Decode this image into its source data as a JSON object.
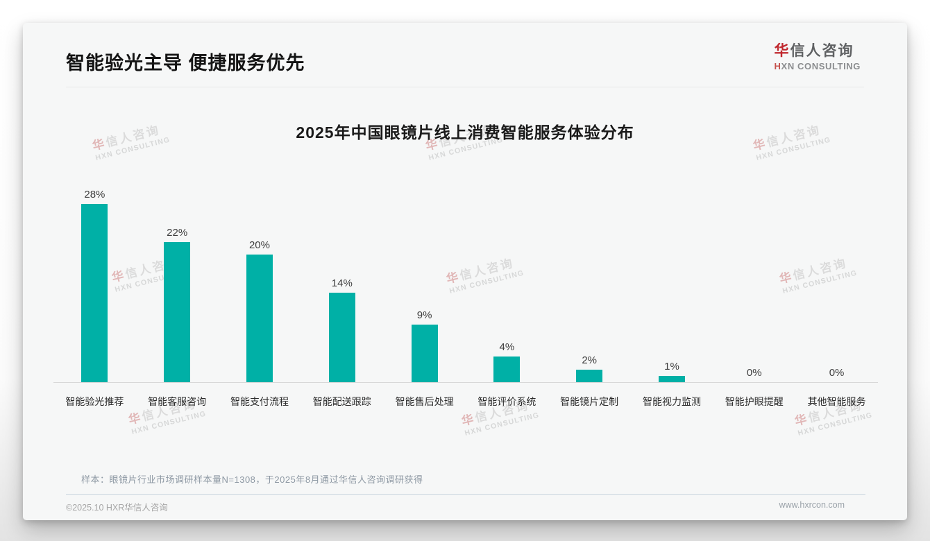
{
  "header": {
    "title": "智能验光主导 便捷服务优先"
  },
  "logo": {
    "zh_accent": "华",
    "zh_rest": "信人咨询",
    "en_accent": "H",
    "en_rest": "XN CONSULTING"
  },
  "watermark": {
    "zh_accent": "华",
    "zh_rest": "信人咨询",
    "en": "HXN CONSULTING"
  },
  "chart_data": {
    "type": "bar",
    "title": "2025年中国眼镜片线上消费智能服务体验分布",
    "categories": [
      "智能验光推荐",
      "智能客服咨询",
      "智能支付流程",
      "智能配送跟踪",
      "智能售后处理",
      "智能评价系统",
      "智能镜片定制",
      "智能视力监测",
      "智能护眼提醒",
      "其他智能服务"
    ],
    "values": [
      28,
      22,
      20,
      14,
      9,
      4,
      2,
      1,
      0,
      0
    ],
    "unit": "%",
    "value_labels": [
      "28%",
      "22%",
      "20%",
      "14%",
      "9%",
      "4%",
      "2%",
      "1%",
      "0%",
      "0%"
    ],
    "bar_color": "#00b0a6",
    "ylim": [
      0,
      30
    ],
    "grid": false,
    "legend": null,
    "xlabel": "",
    "ylabel": ""
  },
  "note": "样本：眼镜片行业市场调研样本量N=1308，于2025年8月通过华信人咨询调研获得",
  "footer": {
    "left": "©2025.10 HXR华信人咨询",
    "right": "www.hxrcon.com"
  }
}
